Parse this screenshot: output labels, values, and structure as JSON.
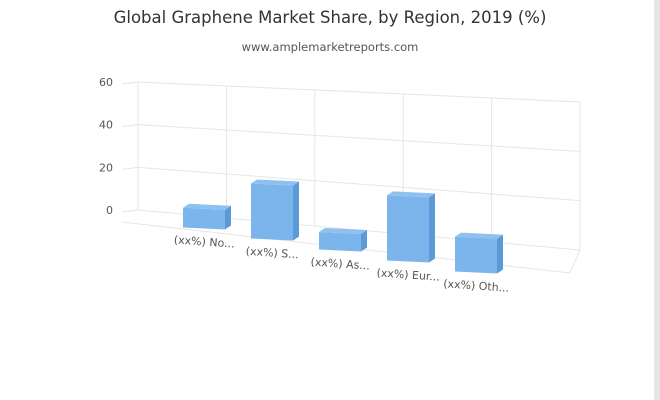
{
  "page": {
    "title": "Global Graphene Market Share, by Region, 2019 (%)",
    "subtitle": "www.amplemarketreports.com"
  },
  "chart_data": {
    "type": "bar",
    "title": "Global Graphene Market Share, by Region, 2019 (%)",
    "subtitle": "www.amplemarketreports.com",
    "categories": [
      "(xx%) No...",
      "(xx%) S...",
      "(xx%) As...",
      "(xx%) Eur...",
      "(xx%) Oth..."
    ],
    "values": [
      9,
      24,
      7,
      26,
      13
    ],
    "xlabel": "",
    "ylabel": "",
    "ylim": [
      0,
      60
    ],
    "yticks": [
      0,
      20,
      40,
      60
    ],
    "grid": true,
    "legend": "none",
    "bar_color": "#7cb5ec",
    "bar_side_color": "#5b9ad6",
    "bar_top_color": "#8fc1f0",
    "grid_color": "#e6e6e6"
  }
}
